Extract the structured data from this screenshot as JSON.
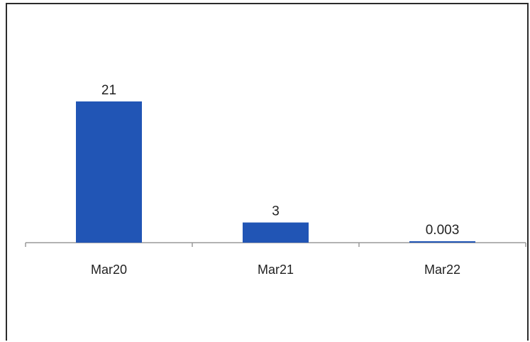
{
  "chart_data": {
    "type": "bar",
    "title": "",
    "xlabel": "",
    "ylabel": "",
    "categories": [
      "Mar20",
      "Mar21",
      "Mar22"
    ],
    "values": [
      21,
      3,
      0.003
    ],
    "data_labels": [
      "21",
      "3",
      "0.003"
    ],
    "ylim": [
      0,
      23
    ],
    "grid": false,
    "legend": "none",
    "bar_color": "#2155b5",
    "axis_color": "#9a9a9a"
  }
}
